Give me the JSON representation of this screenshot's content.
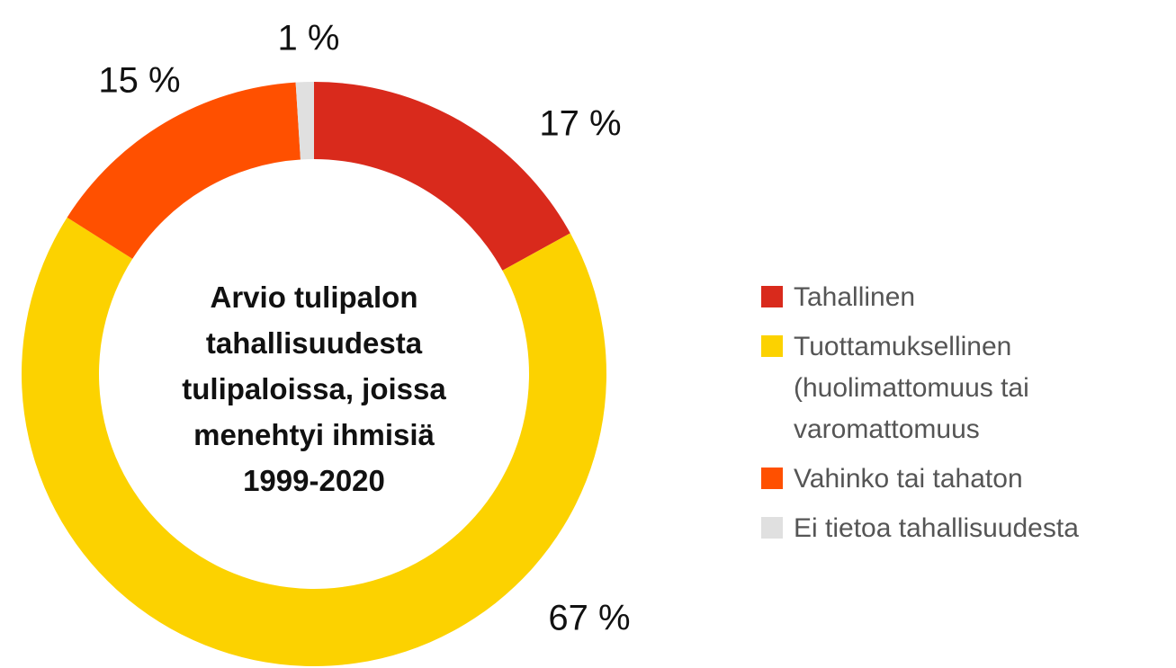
{
  "chart_data": {
    "type": "donut",
    "title": "Arvio tulipalon tahallisuudesta tulipaloissa, joissa menehtyi ihmisiä 1999-2020",
    "categories": [
      "Tahallinen",
      "Tuottamuksellinen (huolimattomuus tai varomattomuus",
      "Vahinko tai tahaton",
      "Ei tietoa tahallisuudesta"
    ],
    "values": [
      17,
      67,
      15,
      1
    ],
    "value_labels": [
      "17 %",
      "67 %",
      "15 %",
      "1 %"
    ],
    "colors": [
      "#d92a1c",
      "#fcd200",
      "#ff5000",
      "#e0e0e0"
    ],
    "legend": "right"
  }
}
